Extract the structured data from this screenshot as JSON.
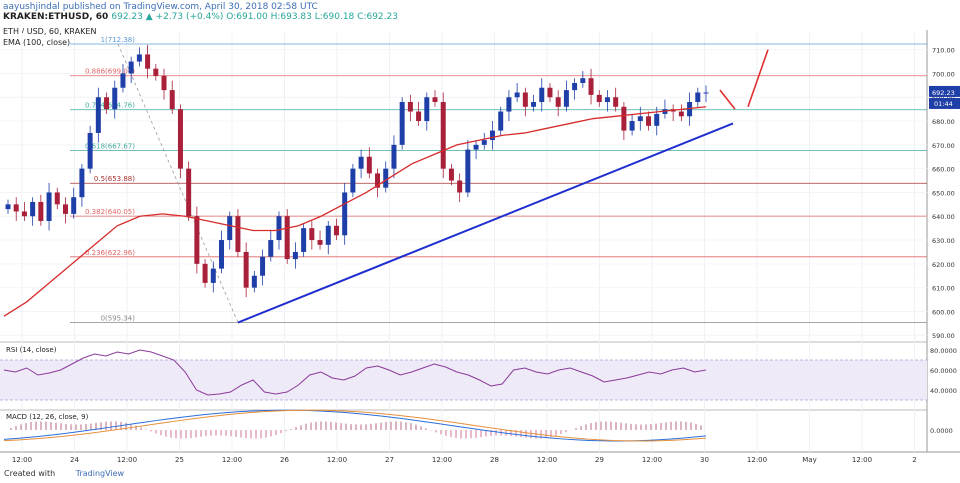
{
  "header": {
    "line1": "aayushjindal published on TradingView.com, April 30, 2018 02:58 UTC",
    "symbol": "KRAKEN:ETHUSD, 60",
    "price_change": "692.23 ▲ +2.73 (+0.4%) O:691.00 H:693.83 L:690.18 C:692.23",
    "title": "ETH / USD, 60, KRAKEN",
    "ema_label": "EMA (100, close)"
  },
  "footer": {
    "created_with": "Created with",
    "brand": "TradingView"
  },
  "rsi": {
    "label": "RSI (14, close)",
    "ticks": [
      "80.0000",
      "60.0000",
      "40.0000"
    ]
  },
  "macd": {
    "label": "MACD (12, 26, close, 9)",
    "ticks": [
      "0.0000"
    ]
  },
  "price_axis": [
    "710.00",
    "700.00",
    "690.00",
    "680.00",
    "670.00",
    "660.00",
    "650.00",
    "640.00",
    "630.00",
    "620.00",
    "610.00",
    "600.00",
    "590.00"
  ],
  "current_price_tags": [
    "692.23",
    "01:44"
  ],
  "time_axis": [
    "12:00",
    "24",
    "12:00",
    "25",
    "12:00",
    "26",
    "12:00",
    "27",
    "12:00",
    "28",
    "12:00",
    "29",
    "12:00",
    "30",
    "12:00",
    "May",
    "12:00",
    "2"
  ],
  "chart_data": {
    "type": "candlestick",
    "title": "ETH / USD, 60, KRAKEN",
    "ylim": [
      588,
      717
    ],
    "fib_levels": [
      {
        "label": "1(712.38)",
        "value": 712.38,
        "color": "#5b9bd5"
      },
      {
        "label": "0.886(699.04)",
        "value": 699.04,
        "color": "#e06666"
      },
      {
        "label": "0.764(684.76)",
        "value": 684.76,
        "color": "#45aaa0"
      },
      {
        "label": "0.618(667.67)",
        "value": 667.67,
        "color": "#45aaa0"
      },
      {
        "label": "0.5(653.88)",
        "value": 653.88,
        "color": "#a33"
      },
      {
        "label": "0.382(640.05)",
        "value": 640.05,
        "color": "#e06666"
      },
      {
        "label": "0.236(622.96)",
        "value": 622.96,
        "color": "#e06666"
      },
      {
        "label": "0(595.34)",
        "value": 595.34,
        "color": "#888"
      }
    ],
    "closes": [
      645,
      642,
      640,
      646,
      638,
      650,
      645,
      641,
      648,
      660,
      675,
      690,
      685,
      694,
      700,
      705,
      708,
      702,
      699,
      693,
      685,
      660,
      640,
      620,
      612,
      618,
      630,
      640,
      625,
      610,
      615,
      623,
      630,
      640,
      622,
      625,
      635,
      630,
      628,
      636,
      632,
      650,
      660,
      665,
      658,
      652,
      660,
      670,
      688,
      684,
      680,
      690,
      688,
      660,
      655,
      650,
      668,
      670,
      672,
      676,
      684,
      690,
      692,
      686,
      688,
      694,
      690,
      686,
      693,
      696,
      698,
      691,
      688,
      690,
      686,
      676,
      680,
      682,
      678,
      683,
      685,
      684,
      682,
      688,
      692,
      692
    ],
    "ema_values": [
      598,
      604,
      612,
      620,
      628,
      636,
      640,
      641,
      640,
      638,
      636,
      634,
      634,
      636,
      640,
      645,
      650,
      656,
      662,
      666,
      670,
      672,
      674,
      675,
      677,
      679,
      681,
      682,
      683,
      684,
      685,
      686
    ]
  }
}
